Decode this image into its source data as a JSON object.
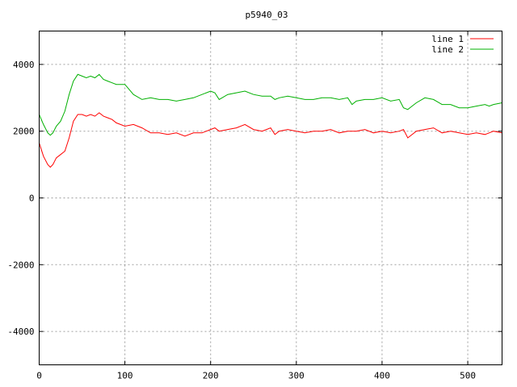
{
  "chart_data": {
    "type": "line",
    "title": "p5940_03",
    "xlabel": "",
    "ylabel": "",
    "xlim": [
      0,
      540
    ],
    "ylim": [
      -5000,
      5000
    ],
    "xticks": [
      0,
      100,
      200,
      300,
      400,
      500
    ],
    "yticks": [
      -4000,
      -2000,
      0,
      2000,
      4000
    ],
    "grid": true,
    "legend_position": "top-right",
    "series": [
      {
        "name": "line 1",
        "color": "#ff0000",
        "x": [
          0,
          5,
          10,
          13,
          16,
          20,
          25,
          30,
          35,
          40,
          45,
          50,
          55,
          60,
          65,
          70,
          75,
          80,
          85,
          90,
          100,
          110,
          120,
          130,
          140,
          150,
          160,
          170,
          180,
          190,
          200,
          205,
          210,
          220,
          230,
          240,
          250,
          260,
          270,
          275,
          280,
          290,
          300,
          310,
          320,
          330,
          340,
          350,
          360,
          370,
          380,
          390,
          400,
          410,
          420,
          425,
          430,
          440,
          450,
          460,
          470,
          480,
          490,
          500,
          510,
          520,
          525,
          530,
          540
        ],
        "values": [
          1650,
          1250,
          1000,
          920,
          1000,
          1200,
          1300,
          1400,
          1800,
          2300,
          2500,
          2500,
          2450,
          2500,
          2450,
          2550,
          2450,
          2400,
          2350,
          2250,
          2150,
          2200,
          2100,
          1950,
          1950,
          1900,
          1950,
          1850,
          1950,
          1950,
          2050,
          2100,
          2000,
          2050,
          2100,
          2200,
          2050,
          2000,
          2100,
          1900,
          2000,
          2050,
          2000,
          1950,
          2000,
          2000,
          2050,
          1950,
          2000,
          2000,
          2050,
          1950,
          2000,
          1950,
          2000,
          2050,
          1800,
          2000,
          2050,
          2100,
          1950,
          2000,
          1950,
          1900,
          1950,
          1900,
          1950,
          2000,
          1950
        ]
      },
      {
        "name": "line 2",
        "color": "#00b000",
        "x": [
          0,
          5,
          10,
          13,
          16,
          20,
          25,
          30,
          35,
          40,
          45,
          50,
          55,
          60,
          65,
          70,
          75,
          80,
          85,
          90,
          100,
          110,
          120,
          130,
          140,
          150,
          160,
          170,
          180,
          190,
          200,
          205,
          210,
          220,
          230,
          240,
          250,
          260,
          270,
          275,
          280,
          290,
          300,
          310,
          320,
          330,
          340,
          350,
          360,
          365,
          370,
          380,
          390,
          400,
          410,
          420,
          425,
          430,
          440,
          450,
          460,
          470,
          480,
          490,
          500,
          510,
          520,
          525,
          530,
          540
        ],
        "values": [
          2500,
          2200,
          1950,
          1880,
          1950,
          2150,
          2300,
          2600,
          3100,
          3500,
          3700,
          3650,
          3600,
          3650,
          3600,
          3700,
          3550,
          3500,
          3450,
          3400,
          3400,
          3100,
          2950,
          3000,
          2950,
          2950,
          2900,
          2950,
          3000,
          3100,
          3200,
          3150,
          2950,
          3100,
          3150,
          3200,
          3100,
          3050,
          3050,
          2950,
          3000,
          3050,
          3000,
          2950,
          2950,
          3000,
          3000,
          2950,
          3000,
          2800,
          2900,
          2950,
          2950,
          3000,
          2900,
          2950,
          2700,
          2650,
          2850,
          3000,
          2950,
          2800,
          2800,
          2700,
          2700,
          2750,
          2800,
          2750,
          2800,
          2850
        ]
      }
    ]
  }
}
